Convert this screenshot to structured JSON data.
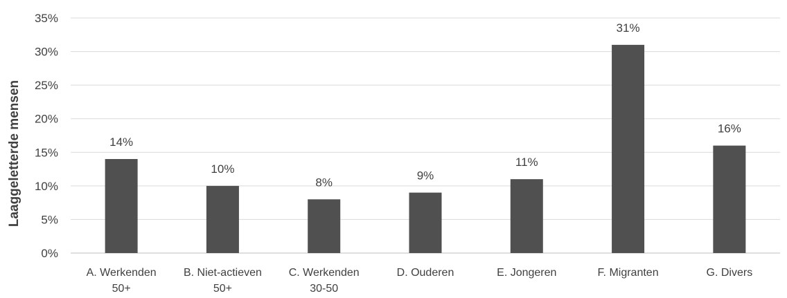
{
  "chart_data": {
    "type": "bar",
    "title": "",
    "xlabel": "",
    "ylabel": "Laaggeletterde mensen",
    "ylim": [
      0,
      35
    ],
    "ytick_step": 5,
    "ytick_labels": [
      "0%",
      "5%",
      "10%",
      "15%",
      "20%",
      "25%",
      "30%",
      "35%"
    ],
    "grid": true,
    "categories": [
      [
        "A. Werkenden",
        "50+"
      ],
      [
        "B. Niet-actieven",
        "50+"
      ],
      [
        "C. Werkenden",
        "30-50"
      ],
      [
        "D. Ouderen"
      ],
      [
        "E. Jongeren"
      ],
      [
        "F. Migranten"
      ],
      [
        "G. Divers"
      ]
    ],
    "values": [
      14,
      10,
      8,
      9,
      11,
      31,
      16
    ],
    "data_labels": [
      "14%",
      "10%",
      "8%",
      "9%",
      "11%",
      "31%",
      "16%"
    ],
    "bar_color": "#505050"
  }
}
